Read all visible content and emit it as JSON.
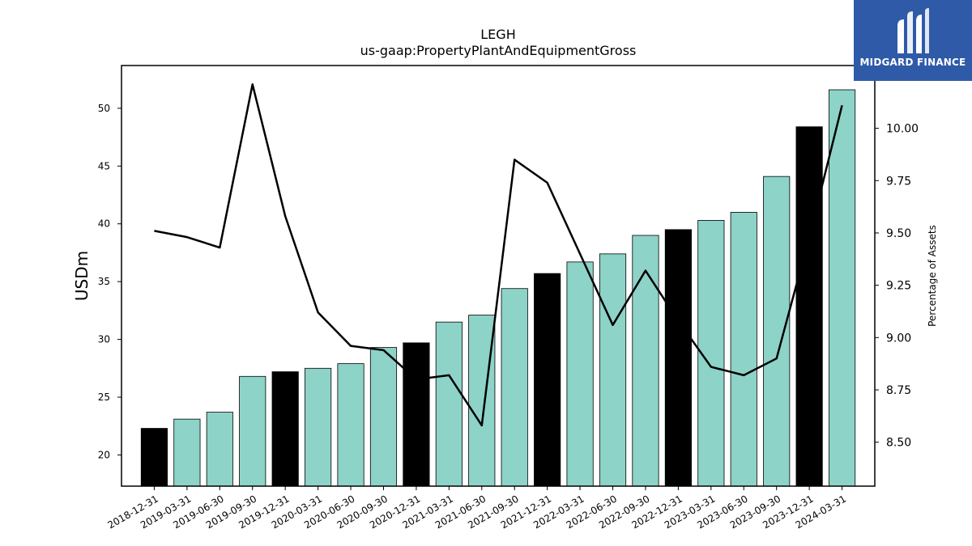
{
  "chart_data": {
    "type": "bar",
    "title": "LEGH",
    "subtitle": "us-gaap:PropertyPlantAndEquipmentGross",
    "ylabel": "USDm",
    "ylabel_right": "Percentage of Assets",
    "categories": [
      "2018-12-31",
      "2019-03-31",
      "2019-06-30",
      "2019-09-30",
      "2019-12-31",
      "2020-03-31",
      "2020-06-30",
      "2020-09-30",
      "2020-12-31",
      "2021-03-31",
      "2021-06-30",
      "2021-09-30",
      "2021-12-31",
      "2022-03-31",
      "2022-06-30",
      "2022-09-30",
      "2022-12-31",
      "2023-03-31",
      "2023-06-30",
      "2023-09-30",
      "2023-12-31",
      "2024-03-31"
    ],
    "series": [
      {
        "kind": "bar",
        "axis": "left",
        "values": [
          22.3,
          23.1,
          23.7,
          26.8,
          27.2,
          27.5,
          27.9,
          29.3,
          29.7,
          31.5,
          32.1,
          34.4,
          35.7,
          36.7,
          37.4,
          39.0,
          39.5,
          40.3,
          41.0,
          44.1,
          48.4,
          51.6
        ],
        "colors": [
          "#000000",
          "#8dd3c7",
          "#8dd3c7",
          "#8dd3c7",
          "#000000",
          "#8dd3c7",
          "#8dd3c7",
          "#8dd3c7",
          "#000000",
          "#8dd3c7",
          "#8dd3c7",
          "#8dd3c7",
          "#000000",
          "#8dd3c7",
          "#8dd3c7",
          "#8dd3c7",
          "#000000",
          "#8dd3c7",
          "#8dd3c7",
          "#8dd3c7",
          "#000000",
          "#8dd3c7"
        ]
      },
      {
        "kind": "line",
        "axis": "right",
        "color": "#000000",
        "values": [
          9.51,
          9.48,
          9.43,
          10.21,
          9.58,
          9.12,
          8.96,
          8.94,
          8.8,
          8.82,
          8.58,
          9.85,
          9.74,
          9.4,
          9.06,
          9.32,
          9.08,
          8.86,
          8.82,
          8.9,
          9.48,
          10.11
        ]
      }
    ],
    "yticks_left": [
      20,
      25,
      30,
      35,
      40,
      45,
      50
    ],
    "ylim_left": [
      17.3,
      53.7
    ],
    "yticks_right": [
      "8.50",
      "8.75",
      "9.00",
      "9.25",
      "9.50",
      "9.75",
      "10.00"
    ],
    "ylim_right": [
      8.29,
      10.3
    ],
    "grid": false,
    "legend": "none"
  },
  "logo": {
    "text": "MIDGARD FINANCE",
    "background": "#2e5aa8"
  }
}
